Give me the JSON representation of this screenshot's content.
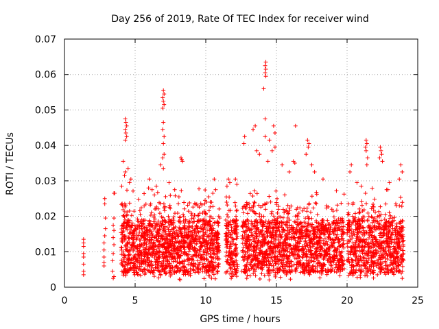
{
  "chart_data": {
    "type": "scatter",
    "title": "Day 256 of 2019, Rate Of TEC Index for receiver wind",
    "xlabel": "GPS time / hours",
    "ylabel": "ROTI / TECUs",
    "xlim": [
      0,
      25
    ],
    "ylim": [
      0,
      0.07
    ],
    "xticks": [
      0,
      5,
      10,
      15,
      20,
      25
    ],
    "xtick_labels": [
      "0",
      "5",
      "10",
      "15",
      "20",
      "25"
    ],
    "yticks": [
      0,
      0.01,
      0.02,
      0.03,
      0.04,
      0.05,
      0.06,
      0.07
    ],
    "ytick_labels": [
      "0",
      "0.01",
      "0.02",
      "0.03",
      "0.04",
      "0.05",
      "0.06",
      "0.07"
    ],
    "grid": true,
    "marker": "plus",
    "color": "#ff0000",
    "series": [
      {
        "name": "ROTI",
        "points": [
          [
            1.35,
            0.0035
          ],
          [
            1.35,
            0.0045
          ],
          [
            1.35,
            0.0065
          ],
          [
            1.35,
            0.0085
          ],
          [
            1.35,
            0.0095
          ],
          [
            1.35,
            0.0115
          ],
          [
            1.35,
            0.0125
          ],
          [
            1.35,
            0.0135
          ],
          [
            2.8,
            0.0085
          ],
          [
            2.8,
            0.0105
          ],
          [
            2.8,
            0.0125
          ],
          [
            2.85,
            0.0145
          ],
          [
            2.9,
            0.0165
          ],
          [
            2.9,
            0.0195
          ],
          [
            2.85,
            0.0235
          ],
          [
            2.85,
            0.025
          ],
          [
            2.8,
            0.007
          ],
          [
            2.8,
            0.006
          ],
          [
            3.45,
            0.0025
          ],
          [
            3.5,
            0.003
          ],
          [
            3.4,
            0.0045
          ],
          [
            3.4,
            0.0075
          ],
          [
            3.45,
            0.0095
          ],
          [
            3.5,
            0.012
          ],
          [
            3.45,
            0.014
          ],
          [
            3.5,
            0.016
          ],
          [
            3.45,
            0.0175
          ],
          [
            3.5,
            0.0195
          ],
          [
            3.55,
            0.0265
          ],
          [
            3.5,
            0.0265
          ],
          [
            4.3,
            0.0475
          ],
          [
            4.35,
            0.0465
          ],
          [
            4.4,
            0.0455
          ],
          [
            4.3,
            0.0445
          ],
          [
            4.35,
            0.0435
          ],
          [
            4.4,
            0.0425
          ],
          [
            4.3,
            0.0415
          ],
          [
            4.15,
            0.0355
          ],
          [
            4.3,
            0.0325
          ],
          [
            4.5,
            0.0335
          ],
          [
            4.7,
            0.0305
          ],
          [
            4.25,
            0.0315
          ],
          [
            4.6,
            0.0295
          ],
          [
            4.05,
            0.0285
          ],
          [
            7.0,
            0.0555
          ],
          [
            7.05,
            0.0545
          ],
          [
            6.95,
            0.0535
          ],
          [
            7.0,
            0.0525
          ],
          [
            7.05,
            0.0515
          ],
          [
            6.95,
            0.0505
          ],
          [
            7.0,
            0.0465
          ],
          [
            6.95,
            0.0445
          ],
          [
            7.05,
            0.0425
          ],
          [
            7.0,
            0.0405
          ],
          [
            7.05,
            0.0375
          ],
          [
            6.95,
            0.0365
          ],
          [
            7.0,
            0.0335
          ],
          [
            6.8,
            0.0345
          ],
          [
            6.0,
            0.0305
          ],
          [
            6.2,
            0.0275
          ],
          [
            6.5,
            0.0285
          ],
          [
            7.4,
            0.0295
          ],
          [
            7.8,
            0.0275
          ],
          [
            8.1,
            0.0255
          ],
          [
            8.25,
            0.0365
          ],
          [
            8.35,
            0.0355
          ],
          [
            8.3,
            0.036
          ],
          [
            9.95,
            0.0245
          ],
          [
            10.05,
            0.024
          ],
          [
            10.5,
            0.0265
          ],
          [
            10.6,
            0.0305
          ],
          [
            10.7,
            0.0275
          ],
          [
            10.2,
            0.0255
          ],
          [
            11.6,
            0.0305
          ],
          [
            11.5,
            0.0285
          ],
          [
            11.7,
            0.0295
          ],
          [
            12.1,
            0.0305
          ],
          [
            12.2,
            0.029
          ],
          [
            11.8,
            0.0025
          ],
          [
            11.85,
            0.003
          ],
          [
            14.25,
            0.0635
          ],
          [
            14.2,
            0.0625
          ],
          [
            14.25,
            0.0615
          ],
          [
            14.2,
            0.0605
          ],
          [
            14.25,
            0.0595
          ],
          [
            14.1,
            0.056
          ],
          [
            14.2,
            0.0475
          ],
          [
            13.5,
            0.0455
          ],
          [
            13.35,
            0.0445
          ],
          [
            12.75,
            0.0425
          ],
          [
            12.7,
            0.0405
          ],
          [
            13.6,
            0.0385
          ],
          [
            14.8,
            0.0455
          ],
          [
            14.9,
            0.0435
          ],
          [
            14.2,
            0.0425
          ],
          [
            14.5,
            0.0415
          ],
          [
            14.9,
            0.0395
          ],
          [
            14.7,
            0.0385
          ],
          [
            13.8,
            0.0375
          ],
          [
            14.4,
            0.0355
          ],
          [
            16.35,
            0.0455
          ],
          [
            16.2,
            0.0355
          ],
          [
            16.3,
            0.035
          ],
          [
            15.4,
            0.0345
          ],
          [
            15.9,
            0.0325
          ],
          [
            17.2,
            0.0415
          ],
          [
            17.3,
            0.0405
          ],
          [
            17.25,
            0.0395
          ],
          [
            17.1,
            0.0375
          ],
          [
            17.5,
            0.0345
          ],
          [
            17.7,
            0.0325
          ],
          [
            18.3,
            0.0305
          ],
          [
            20.3,
            0.0345
          ],
          [
            20.2,
            0.0325
          ],
          [
            20.7,
            0.0295
          ],
          [
            21.0,
            0.0285
          ],
          [
            21.3,
            0.0265
          ],
          [
            21.35,
            0.0415
          ],
          [
            21.4,
            0.0405
          ],
          [
            21.3,
            0.0395
          ],
          [
            21.35,
            0.0385
          ],
          [
            21.45,
            0.0365
          ],
          [
            21.4,
            0.0345
          ],
          [
            22.35,
            0.0395
          ],
          [
            22.4,
            0.0385
          ],
          [
            22.45,
            0.0375
          ],
          [
            22.3,
            0.0365
          ],
          [
            22.5,
            0.0355
          ],
          [
            23.8,
            0.0345
          ],
          [
            23.9,
            0.0325
          ],
          [
            23.7,
            0.0305
          ],
          [
            23.0,
            0.0295
          ],
          [
            22.8,
            0.0275
          ],
          [
            4.4,
            0.0105
          ],
          [
            4.8,
            0.0125
          ],
          [
            5.3,
            0.0085
          ],
          [
            5.9,
            0.0145
          ],
          [
            6.6,
            0.0115
          ],
          [
            7.3,
            0.0135
          ],
          [
            7.9,
            0.0095
          ],
          [
            8.6,
            0.0155
          ],
          [
            9.3,
            0.0105
          ],
          [
            10.2,
            0.0125
          ],
          [
            12.6,
            0.0145
          ],
          [
            13.4,
            0.0115
          ],
          [
            14.3,
            0.0165
          ],
          [
            15.2,
            0.0125
          ],
          [
            16.1,
            0.0095
          ],
          [
            17.0,
            0.0155
          ],
          [
            18.1,
            0.0105
          ],
          [
            19.0,
            0.0135
          ],
          [
            20.6,
            0.0095
          ],
          [
            21.8,
            0.0125
          ],
          [
            22.6,
            0.0105
          ],
          [
            23.5,
            0.0085
          ],
          [
            4.2,
            0.0045
          ],
          [
            8.8,
            0.0035
          ],
          [
            12.9,
            0.0025
          ],
          [
            15.7,
            0.0035
          ],
          [
            19.5,
            0.0045
          ],
          [
            23.9,
            0.0025
          ],
          [
            4.6,
            0.0215
          ],
          [
            6.1,
            0.0235
          ],
          [
            8.4,
            0.0205
          ],
          [
            11.0,
            0.0195
          ],
          [
            13.1,
            0.0225
          ],
          [
            15.6,
            0.0215
          ],
          [
            17.9,
            0.0205
          ],
          [
            21.1,
            0.0215
          ],
          [
            23.2,
            0.0195
          ]
        ]
      }
    ]
  }
}
